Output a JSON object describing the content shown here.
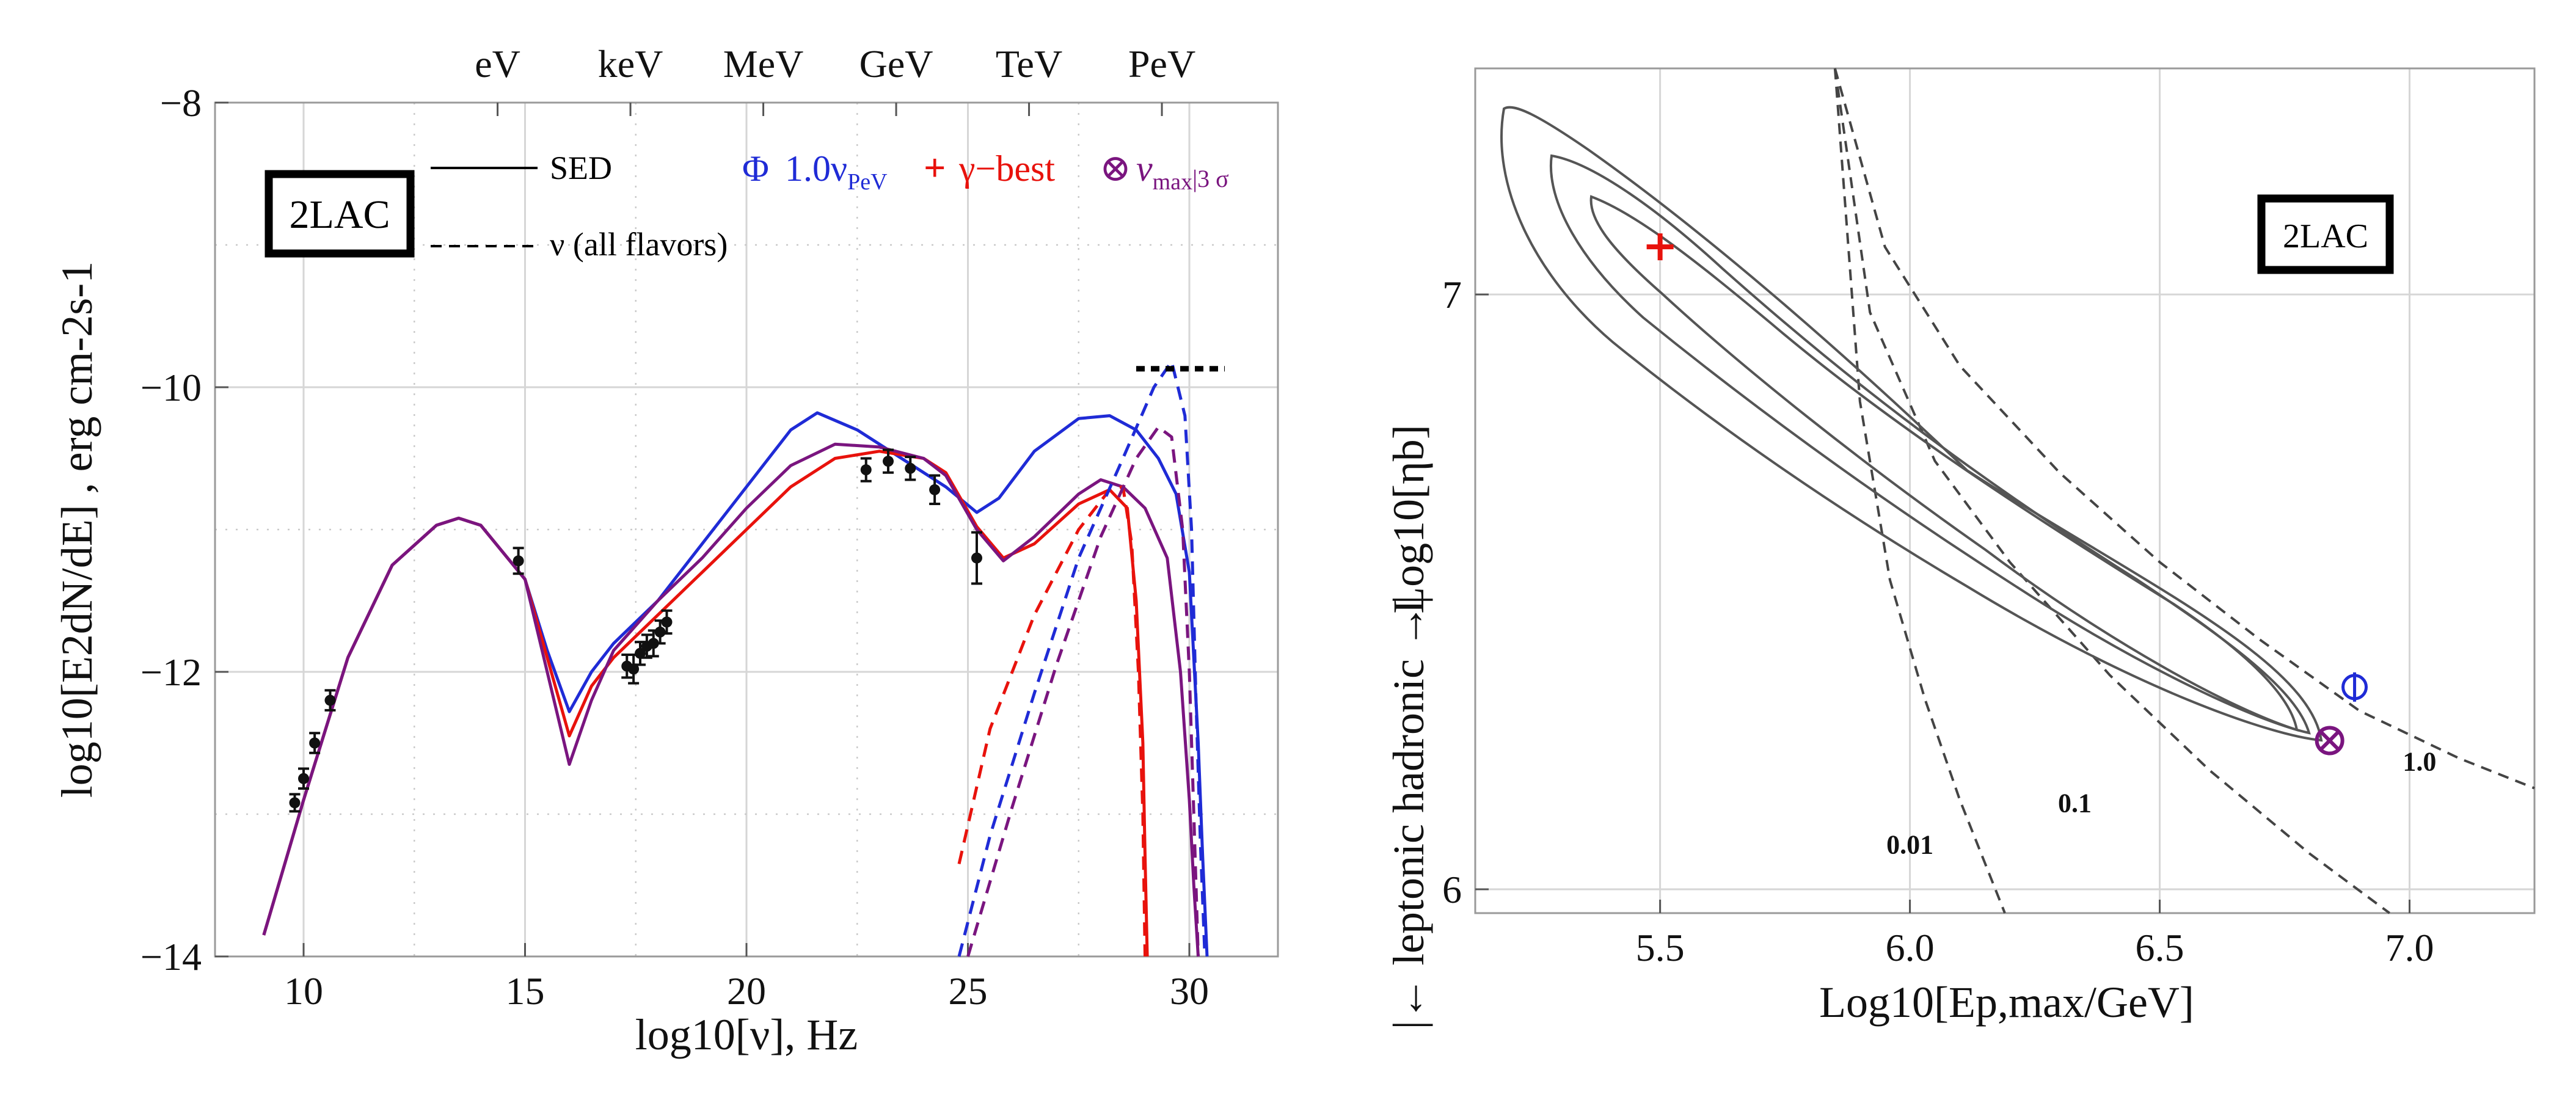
{
  "chart_data": [
    {
      "type": "line",
      "panel": "left",
      "title": "",
      "xlabel": "log10[ν], Hz",
      "ylabel": "log10[E2dN/dE] , erg cm-2s-1",
      "xlim": [
        8,
        32
      ],
      "ylim": [
        -14,
        -8
      ],
      "x_ticks": [
        10,
        15,
        20,
        25,
        30
      ],
      "y_ticks": [
        -14,
        -12,
        -10,
        -8
      ],
      "grid": true,
      "top_axis": {
        "labels": [
          "eV",
          "keV",
          "MeV",
          "GeV",
          "TeV",
          "PeV"
        ],
        "log10_nu": [
          14.38,
          17.38,
          20.38,
          23.38,
          26.38,
          29.38
        ]
      },
      "box_label": "2LAC",
      "style_legend": [
        {
          "label": "SED",
          "style": "solid"
        },
        {
          "label": "ν (all flavors)",
          "style": "dashed"
        }
      ],
      "legend": [
        {
          "marker": "Φ",
          "text": "1.0ν",
          "sub": "PeV",
          "color": "#1f2bd6"
        },
        {
          "marker": "+",
          "text": "γ−best",
          "sub": "",
          "color": "#e8120c"
        },
        {
          "marker": "⊗",
          "text": "ν",
          "sub": "max",
          "extra": "|3 σ",
          "color": "#7a157f"
        }
      ],
      "series": [
        {
          "name": "1.0ν_PeV SED",
          "color": "#1f2bd6",
          "style": "solid",
          "x": [
            9.1,
            10,
            11,
            12,
            13,
            13.5,
            14,
            15,
            15.5,
            16.0,
            16.5,
            17,
            18,
            19,
            20,
            21,
            21.6,
            22.5,
            23.5,
            24.5,
            25.2,
            25.7,
            26.5,
            27.5,
            28.2,
            28.8,
            29.3,
            29.7,
            30.0,
            30.2,
            30.3,
            30.4
          ],
          "y": [
            -13.85,
            -12.9,
            -11.9,
            -11.25,
            -10.97,
            -10.92,
            -10.97,
            -11.35,
            -11.85,
            -12.28,
            -12.0,
            -11.8,
            -11.5,
            -11.1,
            -10.7,
            -10.3,
            -10.18,
            -10.3,
            -10.5,
            -10.7,
            -10.88,
            -10.78,
            -10.45,
            -10.22,
            -10.2,
            -10.3,
            -10.5,
            -10.75,
            -11.3,
            -12.5,
            -13.3,
            -14.0
          ]
        },
        {
          "name": "γ-best SED",
          "color": "#e8120c",
          "style": "solid",
          "x": [
            9.1,
            10,
            11,
            12,
            13,
            13.5,
            14,
            15,
            15.5,
            16.0,
            16.5,
            17,
            18,
            19,
            20,
            21,
            22,
            23,
            24,
            24.5,
            25.2,
            25.8,
            26.5,
            27.5,
            28.2,
            28.6,
            28.8,
            28.95,
            29.0,
            29.05
          ],
          "y": [
            -13.85,
            -12.9,
            -11.9,
            -11.25,
            -10.97,
            -10.92,
            -10.97,
            -11.35,
            -11.9,
            -12.45,
            -12.1,
            -11.9,
            -11.6,
            -11.3,
            -11.0,
            -10.7,
            -10.5,
            -10.45,
            -10.5,
            -10.6,
            -10.98,
            -11.2,
            -11.1,
            -10.82,
            -10.72,
            -10.85,
            -11.5,
            -12.5,
            -13.3,
            -14.0
          ]
        },
        {
          "name": "νmax|3σ SED",
          "color": "#7a157f",
          "style": "solid",
          "x": [
            9.1,
            10,
            11,
            12,
            13,
            13.5,
            14,
            15,
            15.5,
            16.0,
            16.5,
            17,
            18,
            19,
            20,
            21,
            22,
            23,
            24,
            24.5,
            25.2,
            25.8,
            26.5,
            27.5,
            28.0,
            28.5,
            29.0,
            29.5,
            29.8,
            30.0,
            30.1,
            30.2
          ],
          "y": [
            -13.85,
            -12.9,
            -11.9,
            -11.25,
            -10.97,
            -10.92,
            -10.97,
            -11.35,
            -12.0,
            -12.65,
            -12.2,
            -11.85,
            -11.5,
            -11.2,
            -10.85,
            -10.55,
            -10.4,
            -10.42,
            -10.5,
            -10.62,
            -11.0,
            -11.22,
            -11.05,
            -10.75,
            -10.65,
            -10.7,
            -10.85,
            -11.2,
            -12.0,
            -12.9,
            -13.5,
            -14.0
          ]
        },
        {
          "name": "γ-best ν",
          "color": "#e8120c",
          "style": "dashed",
          "x": [
            24.8,
            25.5,
            26.5,
            27.5,
            28.2,
            28.5,
            28.7,
            28.85,
            28.95,
            29.0
          ],
          "y": [
            -13.35,
            -12.4,
            -11.6,
            -11.0,
            -10.72,
            -10.7,
            -11.1,
            -12.0,
            -13.0,
            -14.0
          ]
        },
        {
          "name": "1.0ν_PeV ν",
          "color": "#1f2bd6",
          "style": "dashed",
          "x": [
            24.8,
            25.5,
            26.5,
            27.5,
            28.5,
            29.2,
            29.6,
            29.9,
            30.05,
            30.15,
            30.25,
            30.35
          ],
          "y": [
            -14.0,
            -13.15,
            -12.15,
            -11.2,
            -10.5,
            -10.0,
            -9.82,
            -10.2,
            -11.0,
            -12.2,
            -13.2,
            -14.0
          ]
        },
        {
          "name": "νmax|3σ ν",
          "color": "#7a157f",
          "style": "dashed",
          "x": [
            25.0,
            26.0,
            27.0,
            28.0,
            28.8,
            29.3,
            29.6,
            29.85,
            30.0,
            30.1,
            30.2
          ],
          "y": [
            -14.0,
            -12.95,
            -11.95,
            -11.05,
            -10.5,
            -10.28,
            -10.35,
            -11.0,
            -12.0,
            -13.0,
            -14.0
          ]
        }
      ],
      "hline": {
        "name": "PeV neutrino level",
        "x": [
          28.8,
          30.8
        ],
        "y": -9.87,
        "style": "dotted",
        "color": "#000000"
      },
      "data_points": [
        {
          "x": 9.8,
          "y": -12.92,
          "err": 0.06
        },
        {
          "x": 10.0,
          "y": -12.75,
          "err": 0.07
        },
        {
          "x": 10.25,
          "y": -12.5,
          "err": 0.07
        },
        {
          "x": 10.6,
          "y": -12.2,
          "err": 0.07
        },
        {
          "x": 14.85,
          "y": -11.22,
          "err": 0.09
        },
        {
          "x": 17.3,
          "y": -11.96,
          "err": 0.08
        },
        {
          "x": 17.45,
          "y": -11.98,
          "err": 0.1
        },
        {
          "x": 17.6,
          "y": -11.87,
          "err": 0.08
        },
        {
          "x": 17.75,
          "y": -11.82,
          "err": 0.08
        },
        {
          "x": 17.9,
          "y": -11.8,
          "err": 0.09
        },
        {
          "x": 18.05,
          "y": -11.72,
          "err": 0.08
        },
        {
          "x": 18.2,
          "y": -11.65,
          "err": 0.08
        },
        {
          "x": 22.7,
          "y": -10.58,
          "err": 0.08
        },
        {
          "x": 23.2,
          "y": -10.52,
          "err": 0.08
        },
        {
          "x": 23.7,
          "y": -10.57,
          "err": 0.08
        },
        {
          "x": 24.25,
          "y": -10.72,
          "err": 0.1
        },
        {
          "x": 25.2,
          "y": -11.2,
          "err": 0.18
        }
      ]
    },
    {
      "type": "scatter",
      "panel": "right",
      "title": "",
      "xlabel": "Log10[Ep,max/GeV]",
      "ylabel": "Log10[ηb]",
      "left_annotation": "|← leptonic    hadronic →|",
      "xlim": [
        5.13,
        7.25
      ],
      "ylim": [
        5.96,
        7.38
      ],
      "x_ticks": [
        5.5,
        6.0,
        6.5,
        7.0
      ],
      "y_ticks": [
        6,
        7
      ],
      "grid": true,
      "box_label": "2LAC",
      "contour_labels": [
        "0.01",
        "0.1",
        "1.0"
      ],
      "markers": [
        {
          "name": "γ-best",
          "symbol": "+",
          "x": 5.5,
          "y": 7.08,
          "color": "#e8120c"
        },
        {
          "name": "1.0ν_PeV",
          "symbol": "Φ",
          "x": 6.89,
          "y": 6.34,
          "color": "#1f2bd6"
        },
        {
          "name": "νmax|3σ",
          "symbol": "⊗",
          "x": 6.84,
          "y": 6.25,
          "color": "#7a157f"
        }
      ],
      "iso_curves": [
        {
          "label": "0.01",
          "x": [
            5.85,
            5.9,
            5.96,
            6.03,
            6.1,
            6.19
          ],
          "y": [
            7.38,
            6.82,
            6.52,
            6.32,
            6.15,
            5.96
          ]
        },
        {
          "label": "0.1",
          "x": [
            5.85,
            5.92,
            6.05,
            6.2,
            6.4,
            6.6,
            6.8,
            6.96
          ],
          "y": [
            7.38,
            6.97,
            6.72,
            6.55,
            6.36,
            6.2,
            6.06,
            5.96
          ]
        },
        {
          "label": "1.0",
          "x": [
            5.85,
            5.95,
            6.1,
            6.3,
            6.5,
            6.7,
            6.9,
            7.1,
            7.25
          ],
          "y": [
            7.38,
            7.08,
            6.88,
            6.7,
            6.55,
            6.42,
            6.3,
            6.22,
            6.17
          ]
        }
      ]
    }
  ]
}
